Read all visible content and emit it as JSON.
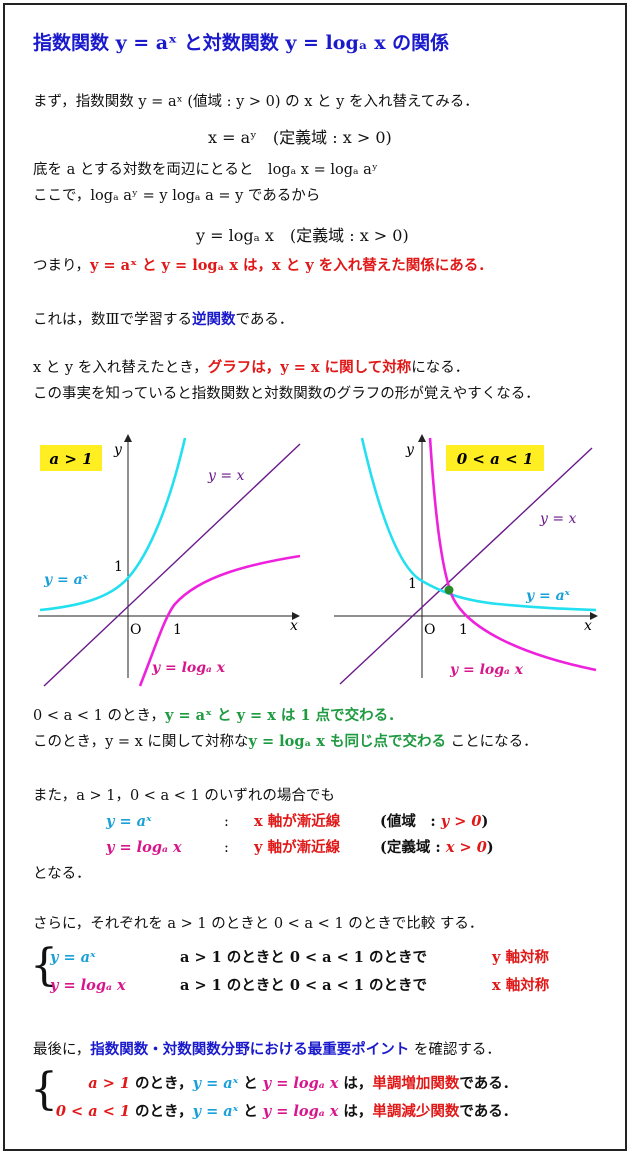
{
  "title": "指数関数 y = aˣ と対数関数 y = logₐ x の関係",
  "lines": {
    "l1": "まず，指数関数 y = aˣ (値域 : y > 0) の x と y を入れ替えてみる．",
    "eq1": "x = aʸ　(定義域 : x > 0)",
    "l2": "底を a とする対数を両辺にとると　logₐ x = logₐ aʸ",
    "l3": "ここで，logₐ aʸ = y logₐ a = y であるから",
    "eq2": "y = logₐ x　(定義域 : x > 0)",
    "l4a": "つまり，",
    "l4b": "y = aˣ と y = logₐ x は，x と y を入れ替えた関係にある．",
    "l5a": "これは，数Ⅲで学習する",
    "l5b": "逆関数",
    "l5c": "である．",
    "l6a": "x と y を入れ替えたとき，",
    "l6b": "グラフは，y = x に関して対称",
    "l6c": "になる．",
    "l7": "この事実を知っていると指数関数と対数関数のグラフの形が覚えやすくなる．",
    "l8a": "0 < a < 1 のとき，",
    "l8b": "y = aˣ と y = x は 1 点で交わる．",
    "l9a": "このとき，y = x に関して対称な",
    "l9b": "y = logₐ x も同じ点で交わる",
    "l9c": " ことになる．",
    "l10": "また，a > 1，0 < a < 1 のいずれの場合でも",
    "r1a": "y = aˣ",
    "r1b": ":",
    "r1c": "x 軸が漸近線",
    "r1d": "(値域　: ",
    "r1e": "y > 0",
    "r1f": ")",
    "r2a": "y = logₐ x",
    "r2b": ":",
    "r2c": "y 軸が漸近線",
    "r2d": "(定義域 : ",
    "r2e": "x > 0",
    "r2f": ")",
    "l11": "となる．",
    "l12": "さらに，それぞれを a > 1 のときと 0 < a < 1 のときで比較 する．",
    "c1a": "y = aˣ",
    "c1b": "a > 1 のときと 0 < a < 1 のときで",
    "c1c": "y 軸対称",
    "c2a": "y = logₐ x",
    "c2b": "a > 1 のときと 0 < a < 1 のときで",
    "c2c": "x 軸対称",
    "l13a": "最後に，",
    "l13b": "指数関数・対数関数分野における最重要ポイント",
    "l13c": " を確認する．",
    "p1a": "a > 1",
    "p1b": " のとき，",
    "p1c": "y = aˣ",
    "p1d": " と ",
    "p1e": "y = logₐ x",
    "p1f": " は，",
    "p1g": "単調増加関数",
    "p1h": "である．",
    "p2a": "0 < a < 1",
    "p2b": " のとき，",
    "p2c": "y = aˣ",
    "p2d": " と ",
    "p2e": "y = logₐ x",
    "p2f": " は，",
    "p2g": "単調減少関数",
    "p2h": "である．"
  },
  "graphs": {
    "left": {
      "badge": "a > 1",
      "y_axis": "y",
      "x_axis": "x",
      "origin": "O",
      "tick_x": "1",
      "tick_y": "1",
      "lbl_line": "y = x",
      "lbl_exp": "y = aˣ",
      "lbl_log": "y = logₐ x"
    },
    "right": {
      "badge": "0 < a < 1",
      "y_axis": "y",
      "x_axis": "x",
      "origin": "O",
      "tick_x": "1",
      "tick_y": "1",
      "lbl_line": "y = x",
      "lbl_exp": "y = aˣ",
      "lbl_log": "y = logₐ x"
    }
  },
  "colors": {
    "badge": "#ffee22",
    "exp_curve": "#22e0f0",
    "log_curve": "#ee22dd",
    "identity_line": "#6a1a8a",
    "intersection": "#2a8a2a"
  }
}
